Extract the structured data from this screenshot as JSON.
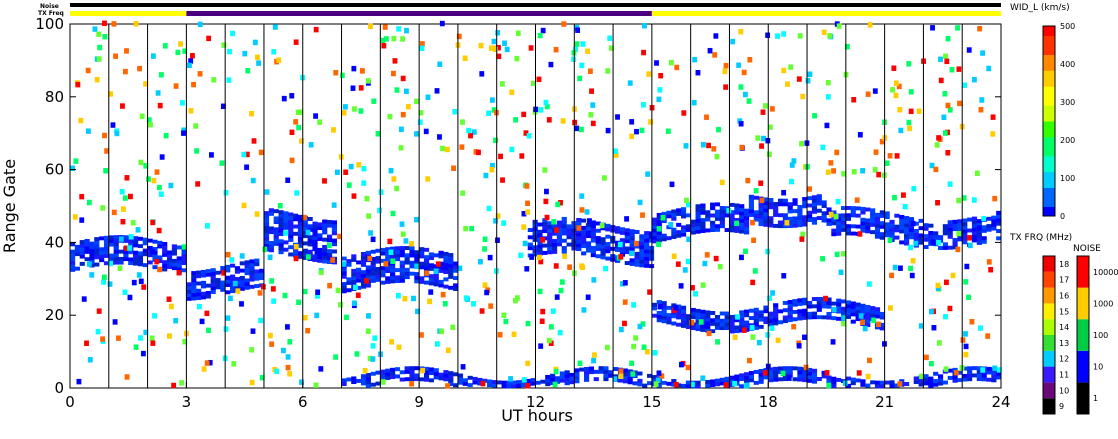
{
  "chart_data": {
    "type": "heatmap",
    "xlabel": "UT hours",
    "ylabel": "Range Gate",
    "xlim": [
      0,
      24
    ],
    "ylim": [
      0,
      100
    ],
    "x_ticks": [
      "0",
      "3",
      "6",
      "9",
      "12",
      "15",
      "18",
      "21",
      "24"
    ],
    "y_ticks": [
      "0",
      "20",
      "40",
      "60",
      "80",
      "100"
    ],
    "top_bars": {
      "noise_label": "Noise",
      "txfreq_label": "TX Freq",
      "segments": [
        {
          "from": 0,
          "to": 3,
          "color": "#ffff00"
        },
        {
          "from": 3,
          "to": 15,
          "color": "#4b0082"
        },
        {
          "from": 15,
          "to": 24,
          "color": "#ffff00"
        }
      ]
    },
    "colorbar_main": {
      "title": "WID_L (km/s)",
      "ticks": [
        "0",
        "100",
        "200",
        "300",
        "400",
        "500"
      ],
      "range": [
        0,
        500
      ]
    },
    "colorbar_freq": {
      "title": "TX FRQ (MHz)",
      "labels": [
        "9",
        "10",
        "11",
        "12",
        "13",
        "14",
        "15",
        "16",
        "17",
        "18"
      ]
    },
    "colorbar_noise": {
      "title": "NOISE",
      "labels": [
        "1",
        "10",
        "100",
        "1000",
        "10000"
      ]
    },
    "scan_boundaries_ut": [
      0,
      1,
      2,
      3,
      4,
      5,
      6,
      7,
      8,
      9,
      10,
      11,
      12,
      13,
      14,
      15,
      16,
      17,
      18,
      19,
      20,
      21,
      22,
      23,
      24
    ],
    "echo_bands": [
      {
        "x_from": 0.0,
        "x_to": 3.0,
        "gate_center": 36,
        "width": 8
      },
      {
        "x_from": 3.0,
        "x_to": 5.0,
        "gate_center": 30,
        "width": 8
      },
      {
        "x_from": 5.0,
        "x_to": 6.8,
        "gate_center": 42,
        "width": 12
      },
      {
        "x_from": 7.0,
        "x_to": 10.0,
        "gate_center": 32,
        "width": 10
      },
      {
        "x_from": 11.8,
        "x_to": 15.0,
        "gate_center": 40,
        "width": 10
      },
      {
        "x_from": 15.0,
        "x_to": 17.5,
        "gate_center": 45,
        "width": 8
      },
      {
        "x_from": 17.5,
        "x_to": 19.5,
        "gate_center": 50,
        "width": 8
      },
      {
        "x_from": 19.5,
        "x_to": 24.0,
        "gate_center": 44,
        "width": 8
      },
      {
        "x_from": 15.0,
        "x_to": 21.0,
        "gate_center": 20,
        "width": 6
      },
      {
        "x_from": 7.0,
        "x_to": 24.0,
        "gate_center": 2,
        "width": 4
      }
    ]
  }
}
